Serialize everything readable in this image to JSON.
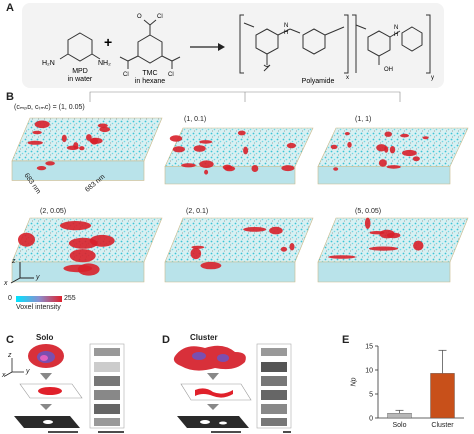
{
  "panels": {
    "A": {
      "letter": "A",
      "mpd": {
        "line1": "MPD",
        "line2": "in water",
        "nh2_left": "H₂N",
        "nh2_right": "NH₂"
      },
      "tmc": {
        "line1": "TMC",
        "line2": "in hexane",
        "cl_top": "Cl",
        "cl_left": "Cl",
        "cl_right": "Cl"
      },
      "plus": "+",
      "product": {
        "label": "Polyamide",
        "sub_x": "x",
        "sub_y": "y",
        "nh1": "N",
        "nh2": "N",
        "h1": "H",
        "h2": "H",
        "oh": "OH"
      }
    },
    "B": {
      "letter": "B",
      "param_label": "(cₘₚᴅ, cₜₘᴄ) = (1, 0.05)",
      "tiles": [
        {
          "label": "(1, 0.1)"
        },
        {
          "label": "(1, 1)"
        },
        {
          "label": "(2, 0.05)"
        },
        {
          "label": "(2, 0.1)"
        },
        {
          "label": "(5, 0.05)"
        }
      ],
      "dim1": "683 nm",
      "dim2": "683 nm",
      "axis_z": "z",
      "axis_x": "x",
      "axis_y": "y",
      "colorbar": {
        "min": "0",
        "max": "255",
        "title": "Voxel intensity",
        "color_low": "#00e5ff",
        "color_high": "#e0202a"
      }
    },
    "C": {
      "letter": "C",
      "title": "Solo",
      "axis_z": "z",
      "axis_x": "x",
      "axis_y": "y"
    },
    "D": {
      "letter": "D",
      "title": "Cluster"
    },
    "E": {
      "letter": "E",
      "ylabel": "Np"
    }
  },
  "chart_data": {
    "type": "bar",
    "categories": [
      "Solo",
      "Cluster"
    ],
    "values": [
      1,
      9.3
    ],
    "errors": [
      0.6,
      4.8
    ],
    "ylabel": "Np",
    "ylim": [
      0,
      15
    ],
    "yticks": [
      0,
      5,
      10,
      15
    ],
    "colors": [
      "#b8b8b8",
      "#c8501a"
    ],
    "grid": false
  }
}
